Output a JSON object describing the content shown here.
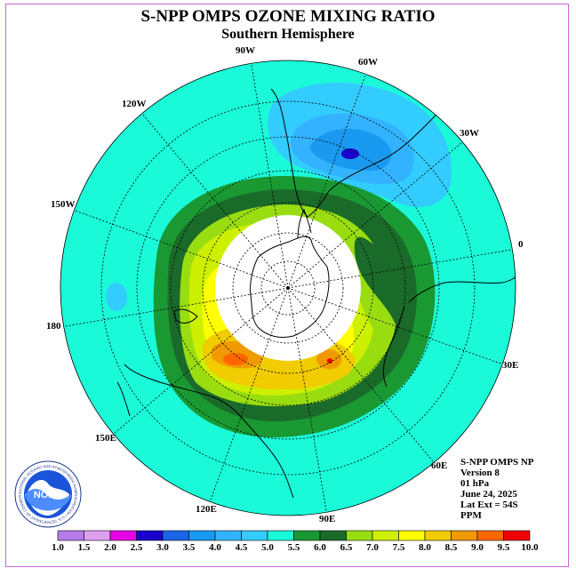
{
  "header": {
    "title": "S-NPP OMPS OZONE MIXING RATIO",
    "subtitle": "Southern Hemisphere"
  },
  "map": {
    "projection": "polar stereographic, south pole centered",
    "longitude_labels": [
      "90W",
      "60W",
      "30W",
      "0",
      "30E",
      "60E",
      "90E",
      "120E",
      "150E",
      "180",
      "150W",
      "120W"
    ],
    "no_data_region": "polar night (white, no retrieval)",
    "features": [
      "Antarctica",
      "South America",
      "Africa",
      "Australia",
      "New Zealand"
    ]
  },
  "info": {
    "lines": [
      "S-NPP OMPS NP",
      "Version 8",
      "01 hPa",
      "June 24, 2025",
      "Lat Ext = 54S",
      "PPM"
    ]
  },
  "logo": {
    "center_text": "NOAA",
    "ring_text": "NATIONAL OCEANIC AND ATMOSPHERIC ADMINISTRATION • U.S. DEPARTMENT OF COMMERCE"
  },
  "colorbar": {
    "labels": [
      "1.0",
      "1.5",
      "2.0",
      "2.5",
      "3.0",
      "3.5",
      "4.0",
      "4.5",
      "5.0",
      "5.5",
      "6.0",
      "6.5",
      "7.0",
      "7.5",
      "8.0",
      "8.5",
      "9.0",
      "9.5",
      "10.0"
    ],
    "colors": [
      "#b57be8",
      "#dda0f0",
      "#e600e6",
      "#1a00cc",
      "#1a66e6",
      "#1a99f0",
      "#33b3ff",
      "#33ccff",
      "#1afad9",
      "#1a9933",
      "#1a6b29",
      "#99dd11",
      "#ccf000",
      "#ffff00",
      "#f0cc00",
      "#f09900",
      "#ff6600",
      "#ee0000",
      "#8c5c33"
    ]
  }
}
